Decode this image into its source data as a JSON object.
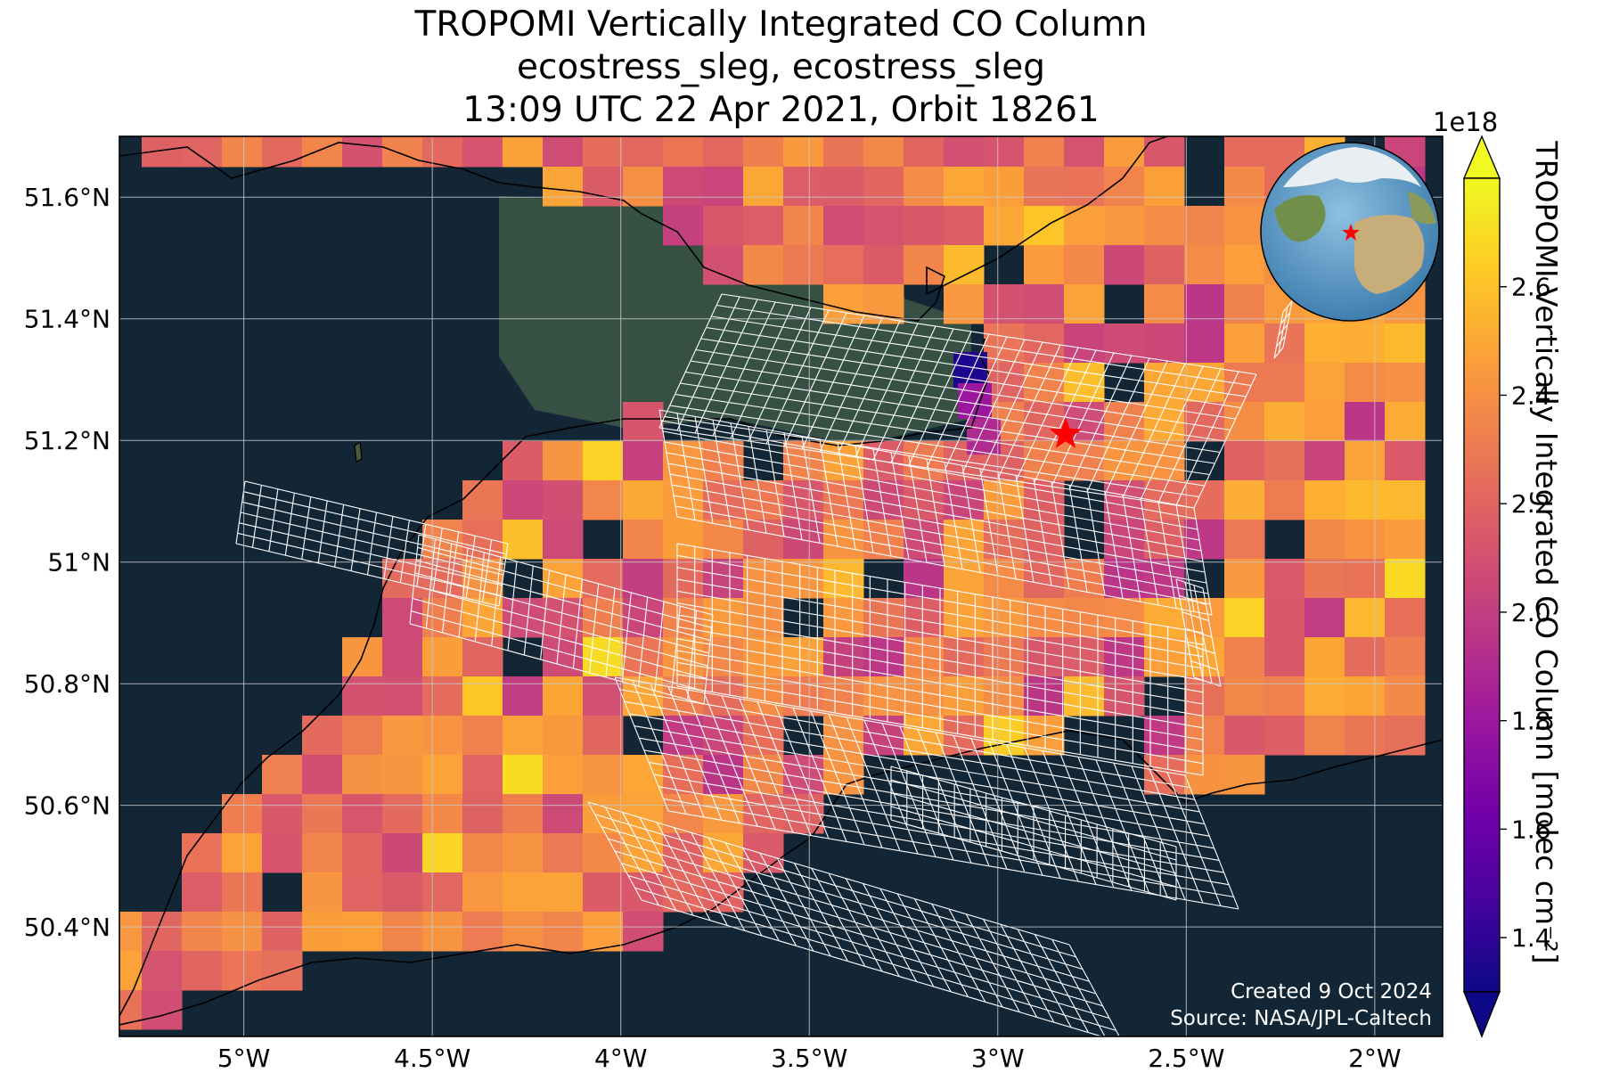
{
  "title": {
    "line1": "TROPOMI Vertically Integrated CO Column",
    "line2": "ecostress_sleg, ecostress_sleg",
    "line3": "13:09 UTC 22 Apr 2021, Orbit 18261"
  },
  "map": {
    "lon_range": [
      -5.33,
      -1.82
    ],
    "lat_range": [
      50.22,
      51.7
    ],
    "lon_ticks": [
      {
        "value": -5.0,
        "label": "5°W"
      },
      {
        "value": -4.5,
        "label": "4.5°W"
      },
      {
        "value": -4.0,
        "label": "4°W"
      },
      {
        "value": -3.5,
        "label": "3.5°W"
      },
      {
        "value": -3.0,
        "label": "3°W"
      },
      {
        "value": -2.5,
        "label": "2.5°W"
      },
      {
        "value": -2.0,
        "label": "2°W"
      }
    ],
    "lat_ticks": [
      {
        "value": 51.6,
        "label": "51.6°N"
      },
      {
        "value": 51.4,
        "label": "51.4°N"
      },
      {
        "value": 51.2,
        "label": "51.2°N"
      },
      {
        "value": 51.0,
        "label": "51°N"
      },
      {
        "value": 50.8,
        "label": "50.8°N"
      },
      {
        "value": 50.6,
        "label": "50.6°N"
      },
      {
        "value": 50.4,
        "label": "50.4°N"
      }
    ],
    "target_marker": {
      "lon": -2.82,
      "lat": 51.21,
      "color": "#ff0000"
    },
    "sea_color": "#122636",
    "gridlines": true
  },
  "colorbar": {
    "label": "TROPOMI Vertically Integrated CO Column [molec cm⁻²]",
    "scale_note": "1e18",
    "range": [
      1.3,
      2.8
    ],
    "ticks": [
      "1.4",
      "1.6",
      "1.8",
      "2.0",
      "2.2",
      "2.4",
      "2.6"
    ],
    "tick_values": [
      1.4,
      1.6,
      1.8,
      2.0,
      2.2,
      2.4,
      2.6
    ],
    "colormap": "plasma",
    "extend": "both"
  },
  "credits": {
    "created": "Created 9 Oct 2024",
    "source": "Source: NASA/JPL-Caltech"
  },
  "chart_data": {
    "type": "heatmap",
    "title": "TROPOMI Vertically Integrated CO Column",
    "xlabel": "",
    "ylabel": "",
    "xlim": [
      -5.33,
      -1.82
    ],
    "ylim": [
      50.22,
      51.7
    ],
    "value_range": [
      1.3,
      2.8
    ],
    "unit_scale": "1e18",
    "approx_sample_values": {
      "min_cell_value": 1.35,
      "typical_value": 2.2,
      "max_cell_value": 2.7
    }
  }
}
